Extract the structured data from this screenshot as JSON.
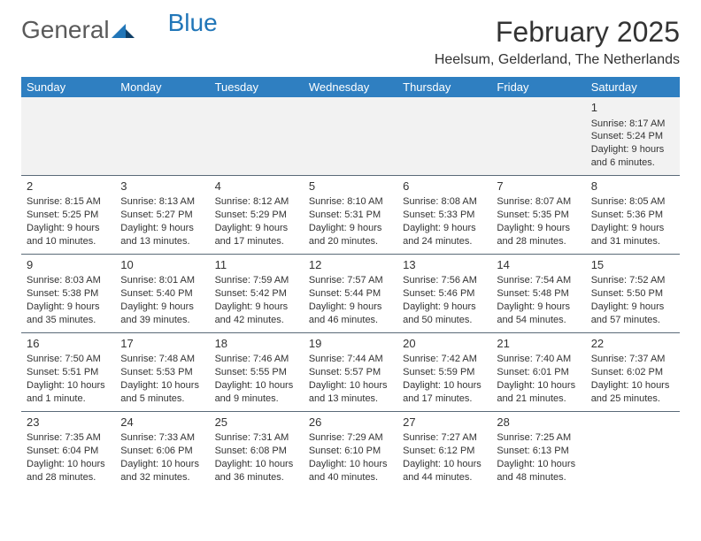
{
  "logo": {
    "text_general": "General",
    "text_blue": "Blue"
  },
  "title": "February 2025",
  "location": "Heelsum, Gelderland, The Netherlands",
  "day_headers": [
    "Sunday",
    "Monday",
    "Tuesday",
    "Wednesday",
    "Thursday",
    "Friday",
    "Saturday"
  ],
  "colors": {
    "header_bg": "#2f7fc1",
    "header_text": "#ffffff",
    "row_separator": "#5a6a78",
    "first_row_bg": "#f2f2f2",
    "logo_blue": "#2176b8",
    "text": "#333333"
  },
  "typography": {
    "title_fontsize": 32,
    "location_fontsize": 16,
    "header_fontsize": 13,
    "daynum_fontsize": 13,
    "body_fontsize": 11
  },
  "weeks": [
    [
      null,
      null,
      null,
      null,
      null,
      null,
      {
        "n": "1",
        "sr": "Sunrise: 8:17 AM",
        "ss": "Sunset: 5:24 PM",
        "dl": "Daylight: 9 hours and 6 minutes."
      }
    ],
    [
      {
        "n": "2",
        "sr": "Sunrise: 8:15 AM",
        "ss": "Sunset: 5:25 PM",
        "dl": "Daylight: 9 hours and 10 minutes."
      },
      {
        "n": "3",
        "sr": "Sunrise: 8:13 AM",
        "ss": "Sunset: 5:27 PM",
        "dl": "Daylight: 9 hours and 13 minutes."
      },
      {
        "n": "4",
        "sr": "Sunrise: 8:12 AM",
        "ss": "Sunset: 5:29 PM",
        "dl": "Daylight: 9 hours and 17 minutes."
      },
      {
        "n": "5",
        "sr": "Sunrise: 8:10 AM",
        "ss": "Sunset: 5:31 PM",
        "dl": "Daylight: 9 hours and 20 minutes."
      },
      {
        "n": "6",
        "sr": "Sunrise: 8:08 AM",
        "ss": "Sunset: 5:33 PM",
        "dl": "Daylight: 9 hours and 24 minutes."
      },
      {
        "n": "7",
        "sr": "Sunrise: 8:07 AM",
        "ss": "Sunset: 5:35 PM",
        "dl": "Daylight: 9 hours and 28 minutes."
      },
      {
        "n": "8",
        "sr": "Sunrise: 8:05 AM",
        "ss": "Sunset: 5:36 PM",
        "dl": "Daylight: 9 hours and 31 minutes."
      }
    ],
    [
      {
        "n": "9",
        "sr": "Sunrise: 8:03 AM",
        "ss": "Sunset: 5:38 PM",
        "dl": "Daylight: 9 hours and 35 minutes."
      },
      {
        "n": "10",
        "sr": "Sunrise: 8:01 AM",
        "ss": "Sunset: 5:40 PM",
        "dl": "Daylight: 9 hours and 39 minutes."
      },
      {
        "n": "11",
        "sr": "Sunrise: 7:59 AM",
        "ss": "Sunset: 5:42 PM",
        "dl": "Daylight: 9 hours and 42 minutes."
      },
      {
        "n": "12",
        "sr": "Sunrise: 7:57 AM",
        "ss": "Sunset: 5:44 PM",
        "dl": "Daylight: 9 hours and 46 minutes."
      },
      {
        "n": "13",
        "sr": "Sunrise: 7:56 AM",
        "ss": "Sunset: 5:46 PM",
        "dl": "Daylight: 9 hours and 50 minutes."
      },
      {
        "n": "14",
        "sr": "Sunrise: 7:54 AM",
        "ss": "Sunset: 5:48 PM",
        "dl": "Daylight: 9 hours and 54 minutes."
      },
      {
        "n": "15",
        "sr": "Sunrise: 7:52 AM",
        "ss": "Sunset: 5:50 PM",
        "dl": "Daylight: 9 hours and 57 minutes."
      }
    ],
    [
      {
        "n": "16",
        "sr": "Sunrise: 7:50 AM",
        "ss": "Sunset: 5:51 PM",
        "dl": "Daylight: 10 hours and 1 minute."
      },
      {
        "n": "17",
        "sr": "Sunrise: 7:48 AM",
        "ss": "Sunset: 5:53 PM",
        "dl": "Daylight: 10 hours and 5 minutes."
      },
      {
        "n": "18",
        "sr": "Sunrise: 7:46 AM",
        "ss": "Sunset: 5:55 PM",
        "dl": "Daylight: 10 hours and 9 minutes."
      },
      {
        "n": "19",
        "sr": "Sunrise: 7:44 AM",
        "ss": "Sunset: 5:57 PM",
        "dl": "Daylight: 10 hours and 13 minutes."
      },
      {
        "n": "20",
        "sr": "Sunrise: 7:42 AM",
        "ss": "Sunset: 5:59 PM",
        "dl": "Daylight: 10 hours and 17 minutes."
      },
      {
        "n": "21",
        "sr": "Sunrise: 7:40 AM",
        "ss": "Sunset: 6:01 PM",
        "dl": "Daylight: 10 hours and 21 minutes."
      },
      {
        "n": "22",
        "sr": "Sunrise: 7:37 AM",
        "ss": "Sunset: 6:02 PM",
        "dl": "Daylight: 10 hours and 25 minutes."
      }
    ],
    [
      {
        "n": "23",
        "sr": "Sunrise: 7:35 AM",
        "ss": "Sunset: 6:04 PM",
        "dl": "Daylight: 10 hours and 28 minutes."
      },
      {
        "n": "24",
        "sr": "Sunrise: 7:33 AM",
        "ss": "Sunset: 6:06 PM",
        "dl": "Daylight: 10 hours and 32 minutes."
      },
      {
        "n": "25",
        "sr": "Sunrise: 7:31 AM",
        "ss": "Sunset: 6:08 PM",
        "dl": "Daylight: 10 hours and 36 minutes."
      },
      {
        "n": "26",
        "sr": "Sunrise: 7:29 AM",
        "ss": "Sunset: 6:10 PM",
        "dl": "Daylight: 10 hours and 40 minutes."
      },
      {
        "n": "27",
        "sr": "Sunrise: 7:27 AM",
        "ss": "Sunset: 6:12 PM",
        "dl": "Daylight: 10 hours and 44 minutes."
      },
      {
        "n": "28",
        "sr": "Sunrise: 7:25 AM",
        "ss": "Sunset: 6:13 PM",
        "dl": "Daylight: 10 hours and 48 minutes."
      },
      null
    ]
  ]
}
